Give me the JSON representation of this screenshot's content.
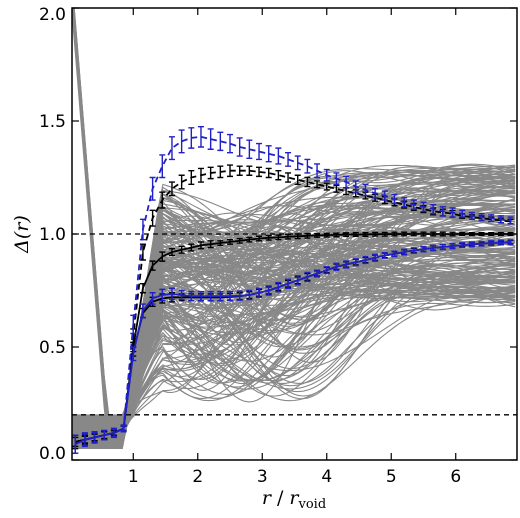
{
  "chart_data": {
    "type": "line",
    "xlabel_main": "r",
    "xlabel_sep": " / ",
    "xlabel_r": "r",
    "xlabel_sub": "void",
    "ylabel": "Δ(r)",
    "xlim": [
      0.05,
      6.95
    ],
    "ylim": [
      0.0,
      2.0
    ],
    "xticks": [
      1,
      2,
      3,
      4,
      5,
      6
    ],
    "xtick_labels": [
      "1",
      "2",
      "3",
      "4",
      "5",
      "6"
    ],
    "yticks": [
      0.0,
      0.5,
      1.0,
      1.5,
      2.0
    ],
    "ytick_labels": [
      "0.0",
      "0.5",
      "1.0",
      "1.5",
      "2.0"
    ],
    "hlines": [
      1.0,
      0.2
    ],
    "background_curves": {
      "color": "#888888",
      "count": 220
    },
    "x": [
      0.1,
      0.25,
      0.4,
      0.55,
      0.7,
      0.85,
      1.0,
      1.15,
      1.3,
      1.45,
      1.6,
      1.75,
      1.9,
      2.05,
      2.2,
      2.35,
      2.5,
      2.65,
      2.8,
      2.95,
      3.1,
      3.25,
      3.4,
      3.55,
      3.7,
      3.85,
      4.0,
      4.15,
      4.3,
      4.45,
      4.6,
      4.75,
      4.9,
      5.05,
      5.2,
      5.35,
      5.5,
      5.65,
      5.8,
      5.95,
      6.1,
      6.25,
      6.4,
      6.55,
      6.7,
      6.85
    ],
    "series": [
      {
        "color": "#000000",
        "style": "dashed",
        "values": [
          0.08,
          0.09,
          0.1,
          0.11,
          0.12,
          0.14,
          0.55,
          0.92,
          1.07,
          1.15,
          1.2,
          1.23,
          1.25,
          1.26,
          1.27,
          1.275,
          1.28,
          1.28,
          1.28,
          1.275,
          1.27,
          1.26,
          1.25,
          1.24,
          1.23,
          1.22,
          1.21,
          1.2,
          1.19,
          1.18,
          1.17,
          1.16,
          1.15,
          1.14,
          1.13,
          1.12,
          1.11,
          1.1,
          1.095,
          1.09,
          1.08,
          1.075,
          1.07,
          1.065,
          1.06,
          1.055
        ],
        "err": [
          0.03,
          0.02,
          0.02,
          0.02,
          0.015,
          0.01,
          0.03,
          0.035,
          0.035,
          0.035,
          0.03,
          0.03,
          0.03,
          0.03,
          0.025,
          0.025,
          0.025,
          0.02,
          0.02,
          0.02,
          0.02,
          0.02,
          0.02,
          0.02,
          0.02,
          0.015,
          0.015,
          0.015,
          0.015,
          0.015,
          0.015,
          0.015,
          0.015,
          0.015,
          0.015,
          0.015,
          0.015,
          0.015,
          0.015,
          0.015,
          0.01,
          0.01,
          0.01,
          0.01,
          0.01,
          0.01
        ]
      },
      {
        "color": "#000000",
        "style": "solid",
        "values": [
          0.08,
          0.09,
          0.1,
          0.11,
          0.12,
          0.14,
          0.5,
          0.76,
          0.86,
          0.9,
          0.92,
          0.93,
          0.94,
          0.95,
          0.955,
          0.96,
          0.965,
          0.97,
          0.975,
          0.98,
          0.983,
          0.985,
          0.988,
          0.99,
          0.992,
          0.994,
          0.995,
          0.996,
          0.997,
          0.998,
          0.998,
          0.999,
          0.999,
          1.0,
          1.0,
          1.0,
          1.0,
          1.0,
          1.0,
          1.0,
          1.0,
          1.0,
          1.0,
          1.0,
          1.0,
          1.0
        ],
        "err": [
          0.02,
          0.015,
          0.015,
          0.015,
          0.01,
          0.01,
          0.02,
          0.02,
          0.02,
          0.02,
          0.015,
          0.015,
          0.015,
          0.015,
          0.015,
          0.01,
          0.01,
          0.01,
          0.01,
          0.01,
          0.01,
          0.01,
          0.01,
          0.01,
          0.01,
          0.008,
          0.008,
          0.008,
          0.008,
          0.008,
          0.008,
          0.008,
          0.008,
          0.008,
          0.008,
          0.008,
          0.008,
          0.008,
          0.008,
          0.008,
          0.006,
          0.006,
          0.006,
          0.006,
          0.006,
          0.006
        ]
      },
      {
        "color": "#000000",
        "style": "solid",
        "values": [
          0.08,
          0.09,
          0.1,
          0.11,
          0.12,
          0.14,
          0.48,
          0.65,
          0.7,
          0.715,
          0.72,
          0.72,
          0.72,
          0.72,
          0.72,
          0.72,
          0.722,
          0.725,
          0.73,
          0.74,
          0.75,
          0.765,
          0.78,
          0.795,
          0.81,
          0.825,
          0.84,
          0.855,
          0.865,
          0.875,
          0.885,
          0.895,
          0.905,
          0.912,
          0.92,
          0.927,
          0.933,
          0.938,
          0.943,
          0.947,
          0.951,
          0.954,
          0.957,
          0.96,
          0.962,
          0.964
        ],
        "err": [
          0.02,
          0.015,
          0.015,
          0.015,
          0.01,
          0.01,
          0.02,
          0.02,
          0.02,
          0.02,
          0.02,
          0.015,
          0.015,
          0.015,
          0.015,
          0.015,
          0.015,
          0.015,
          0.015,
          0.015,
          0.015,
          0.015,
          0.015,
          0.015,
          0.015,
          0.012,
          0.012,
          0.012,
          0.012,
          0.012,
          0.012,
          0.012,
          0.01,
          0.01,
          0.01,
          0.01,
          0.01,
          0.01,
          0.01,
          0.01,
          0.008,
          0.008,
          0.008,
          0.008,
          0.008,
          0.008
        ]
      },
      {
        "color": "#2020c8",
        "style": "dashed",
        "values": [
          0.07,
          0.09,
          0.1,
          0.11,
          0.12,
          0.14,
          0.6,
          1.02,
          1.2,
          1.3,
          1.38,
          1.41,
          1.425,
          1.43,
          1.42,
          1.41,
          1.4,
          1.385,
          1.375,
          1.365,
          1.355,
          1.345,
          1.33,
          1.315,
          1.3,
          1.28,
          1.26,
          1.245,
          1.23,
          1.21,
          1.195,
          1.18,
          1.17,
          1.155,
          1.14,
          1.13,
          1.12,
          1.11,
          1.1,
          1.095,
          1.09,
          1.08,
          1.075,
          1.07,
          1.065,
          1.06
        ],
        "err": [
          0.04,
          0.03,
          0.025,
          0.02,
          0.02,
          0.015,
          0.04,
          0.045,
          0.05,
          0.05,
          0.05,
          0.05,
          0.045,
          0.045,
          0.045,
          0.04,
          0.04,
          0.04,
          0.04,
          0.035,
          0.035,
          0.035,
          0.03,
          0.03,
          0.03,
          0.03,
          0.025,
          0.025,
          0.025,
          0.025,
          0.025,
          0.02,
          0.02,
          0.02,
          0.02,
          0.02,
          0.02,
          0.02,
          0.02,
          0.02,
          0.015,
          0.015,
          0.015,
          0.015,
          0.015,
          0.015
        ]
      },
      {
        "color": "#2020c8",
        "style": "solid",
        "values": [
          0.07,
          0.09,
          0.1,
          0.11,
          0.12,
          0.14,
          0.47,
          0.66,
          0.715,
          0.73,
          0.735,
          0.73,
          0.725,
          0.725,
          0.725,
          0.725,
          0.725,
          0.727,
          0.73,
          0.74,
          0.75,
          0.765,
          0.78,
          0.795,
          0.81,
          0.825,
          0.84,
          0.855,
          0.865,
          0.875,
          0.885,
          0.895,
          0.905,
          0.912,
          0.92,
          0.927,
          0.933,
          0.938,
          0.943,
          0.947,
          0.951,
          0.954,
          0.957,
          0.96,
          0.962,
          0.964
        ],
        "err": [
          0.04,
          0.025,
          0.02,
          0.02,
          0.015,
          0.01,
          0.03,
          0.03,
          0.025,
          0.025,
          0.025,
          0.02,
          0.02,
          0.02,
          0.02,
          0.02,
          0.02,
          0.02,
          0.02,
          0.02,
          0.02,
          0.02,
          0.02,
          0.02,
          0.02,
          0.015,
          0.015,
          0.015,
          0.015,
          0.015,
          0.015,
          0.015,
          0.012,
          0.012,
          0.012,
          0.012,
          0.012,
          0.012,
          0.012,
          0.012,
          0.01,
          0.01,
          0.01,
          0.01,
          0.01,
          0.01
        ]
      }
    ]
  }
}
